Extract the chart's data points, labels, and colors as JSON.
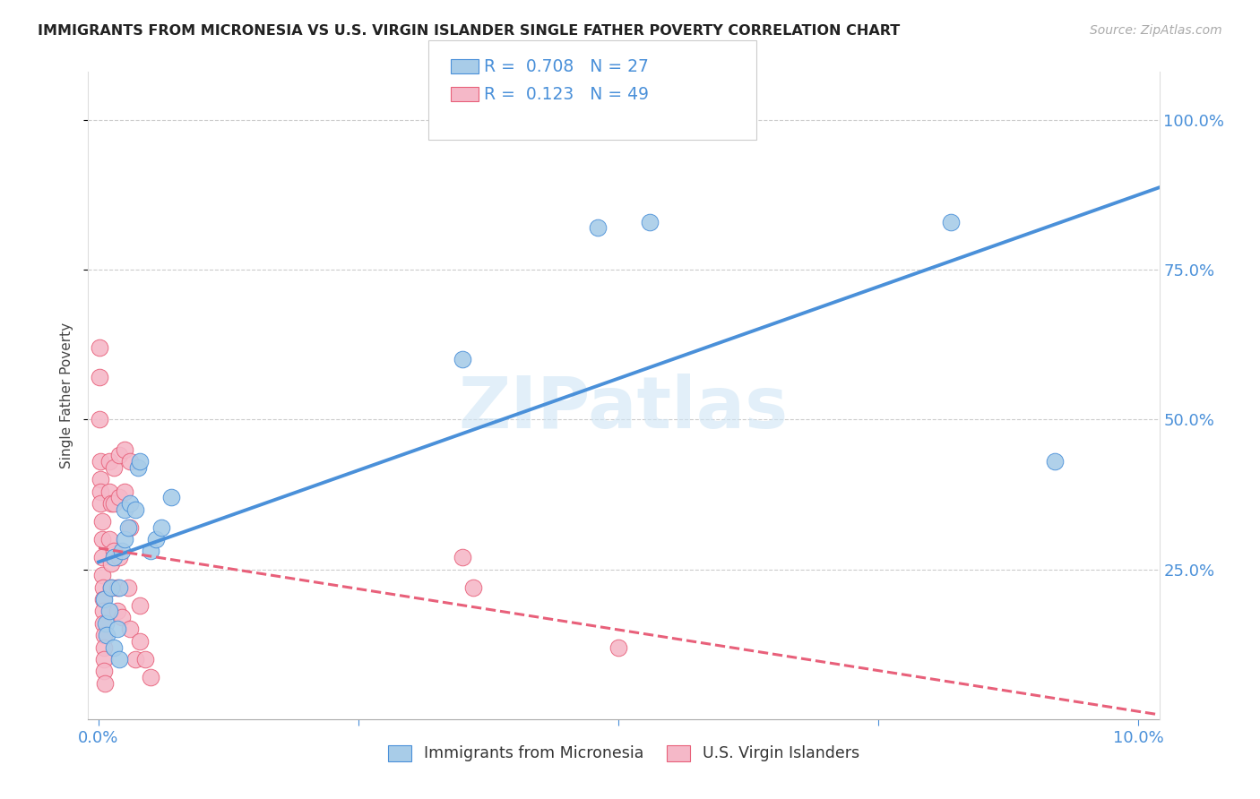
{
  "title": "IMMIGRANTS FROM MICRONESIA VS U.S. VIRGIN ISLANDER SINGLE FATHER POVERTY CORRELATION CHART",
  "source": "Source: ZipAtlas.com",
  "ylabel": "Single Father Poverty",
  "legend_blue_R": "0.708",
  "legend_blue_N": "27",
  "legend_pink_R": "0.123",
  "legend_pink_N": "49",
  "legend_blue_label": "Immigrants from Micronesia",
  "legend_pink_label": "U.S. Virgin Islanders",
  "watermark": "ZIPatlas",
  "blue_color": "#a8cce8",
  "pink_color": "#f5b8c8",
  "blue_line_color": "#4a90d9",
  "pink_line_color": "#e8607a",
  "blue_scatter": [
    [
      0.0005,
      0.2
    ],
    [
      0.0007,
      0.16
    ],
    [
      0.0008,
      0.14
    ],
    [
      0.001,
      0.18
    ],
    [
      0.0012,
      0.22
    ],
    [
      0.0015,
      0.12
    ],
    [
      0.0015,
      0.27
    ],
    [
      0.0018,
      0.15
    ],
    [
      0.002,
      0.1
    ],
    [
      0.002,
      0.22
    ],
    [
      0.0022,
      0.28
    ],
    [
      0.0025,
      0.3
    ],
    [
      0.0025,
      0.35
    ],
    [
      0.0028,
      0.32
    ],
    [
      0.003,
      0.36
    ],
    [
      0.0035,
      0.35
    ],
    [
      0.0038,
      0.42
    ],
    [
      0.004,
      0.43
    ],
    [
      0.005,
      0.28
    ],
    [
      0.0055,
      0.3
    ],
    [
      0.006,
      0.32
    ],
    [
      0.007,
      0.37
    ],
    [
      0.035,
      0.6
    ],
    [
      0.048,
      0.82
    ],
    [
      0.053,
      0.83
    ],
    [
      0.082,
      0.83
    ],
    [
      0.092,
      0.43
    ]
  ],
  "pink_scatter": [
    [
      0.0001,
      0.62
    ],
    [
      0.0001,
      0.57
    ],
    [
      0.0001,
      0.5
    ],
    [
      0.0002,
      0.43
    ],
    [
      0.0002,
      0.4
    ],
    [
      0.0002,
      0.38
    ],
    [
      0.0002,
      0.36
    ],
    [
      0.0003,
      0.33
    ],
    [
      0.0003,
      0.3
    ],
    [
      0.0003,
      0.27
    ],
    [
      0.0003,
      0.24
    ],
    [
      0.0004,
      0.22
    ],
    [
      0.0004,
      0.2
    ],
    [
      0.0004,
      0.18
    ],
    [
      0.0004,
      0.16
    ],
    [
      0.0005,
      0.14
    ],
    [
      0.0005,
      0.12
    ],
    [
      0.0005,
      0.1
    ],
    [
      0.0005,
      0.08
    ],
    [
      0.0006,
      0.06
    ],
    [
      0.001,
      0.43
    ],
    [
      0.001,
      0.38
    ],
    [
      0.001,
      0.3
    ],
    [
      0.0012,
      0.36
    ],
    [
      0.0012,
      0.26
    ],
    [
      0.0012,
      0.22
    ],
    [
      0.0015,
      0.42
    ],
    [
      0.0015,
      0.36
    ],
    [
      0.0015,
      0.28
    ],
    [
      0.0018,
      0.22
    ],
    [
      0.0018,
      0.18
    ],
    [
      0.002,
      0.44
    ],
    [
      0.002,
      0.37
    ],
    [
      0.002,
      0.27
    ],
    [
      0.0022,
      0.17
    ],
    [
      0.0025,
      0.45
    ],
    [
      0.0025,
      0.38
    ],
    [
      0.0028,
      0.22
    ],
    [
      0.003,
      0.43
    ],
    [
      0.003,
      0.32
    ],
    [
      0.003,
      0.15
    ],
    [
      0.0035,
      0.1
    ],
    [
      0.004,
      0.19
    ],
    [
      0.004,
      0.13
    ],
    [
      0.0045,
      0.1
    ],
    [
      0.005,
      0.07
    ],
    [
      0.035,
      0.27
    ],
    [
      0.036,
      0.22
    ],
    [
      0.05,
      0.12
    ]
  ],
  "xlim_min": 0.0,
  "xlim_max": 0.102,
  "ylim_min": 0.0,
  "ylim_max": 1.08,
  "x_tick_positions": [
    0.0,
    0.025,
    0.05,
    0.075,
    0.1
  ],
  "x_tick_labels": [
    "0.0%",
    "",
    "",
    "",
    "10.0%"
  ],
  "y_tick_positions": [
    0.25,
    0.5,
    0.75,
    1.0
  ],
  "y_tick_labels": [
    "25.0%",
    "50.0%",
    "75.0%",
    "100.0%"
  ]
}
